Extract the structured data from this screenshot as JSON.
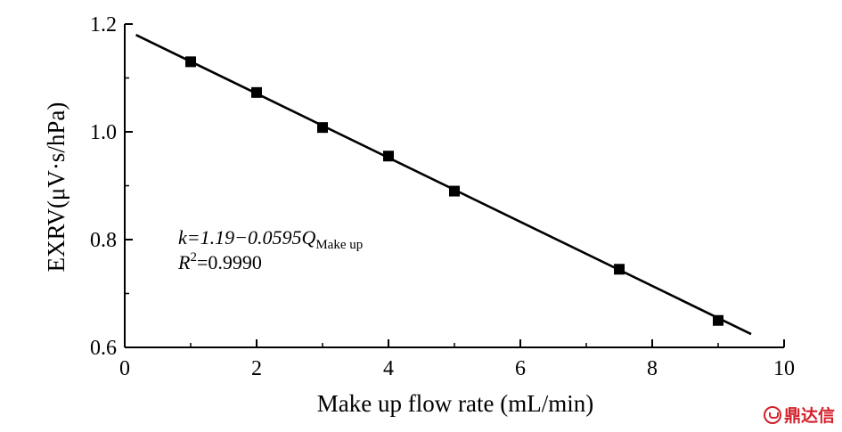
{
  "chart_data": {
    "type": "scatter",
    "xlabel": "Make up flow rate (mL/min)",
    "ylabel": "EXRV(μV·s/hPa)",
    "xlim": [
      0,
      10
    ],
    "ylim": [
      0.6,
      1.2
    ],
    "x_ticks": [
      "0",
      "2",
      "4",
      "6",
      "8",
      "10"
    ],
    "y_ticks": [
      "0.6",
      "0.8",
      "1.0",
      "1.2"
    ],
    "series": [
      {
        "marker": "square",
        "color": "#000000",
        "x": [
          1.0,
          2.0,
          3.0,
          4.0,
          5.0,
          7.5,
          9.0
        ],
        "y": [
          1.13,
          1.073,
          1.008,
          0.955,
          0.89,
          0.745,
          0.65
        ]
      }
    ],
    "fit_line": {
      "intercept": 1.19,
      "slope": -0.0595,
      "x_range": [
        0.17,
        9.5
      ]
    },
    "annotation": {
      "equation_main": "k=1.19−0.0595Q",
      "equation_sub": "Make up",
      "r2_label": "R",
      "r2_sup": "2",
      "r2_value": "=0.9990"
    },
    "grid": false,
    "legend": "none"
  },
  "watermark": {
    "text": "鼎达信",
    "logo": "red-circle-logo-icon"
  }
}
